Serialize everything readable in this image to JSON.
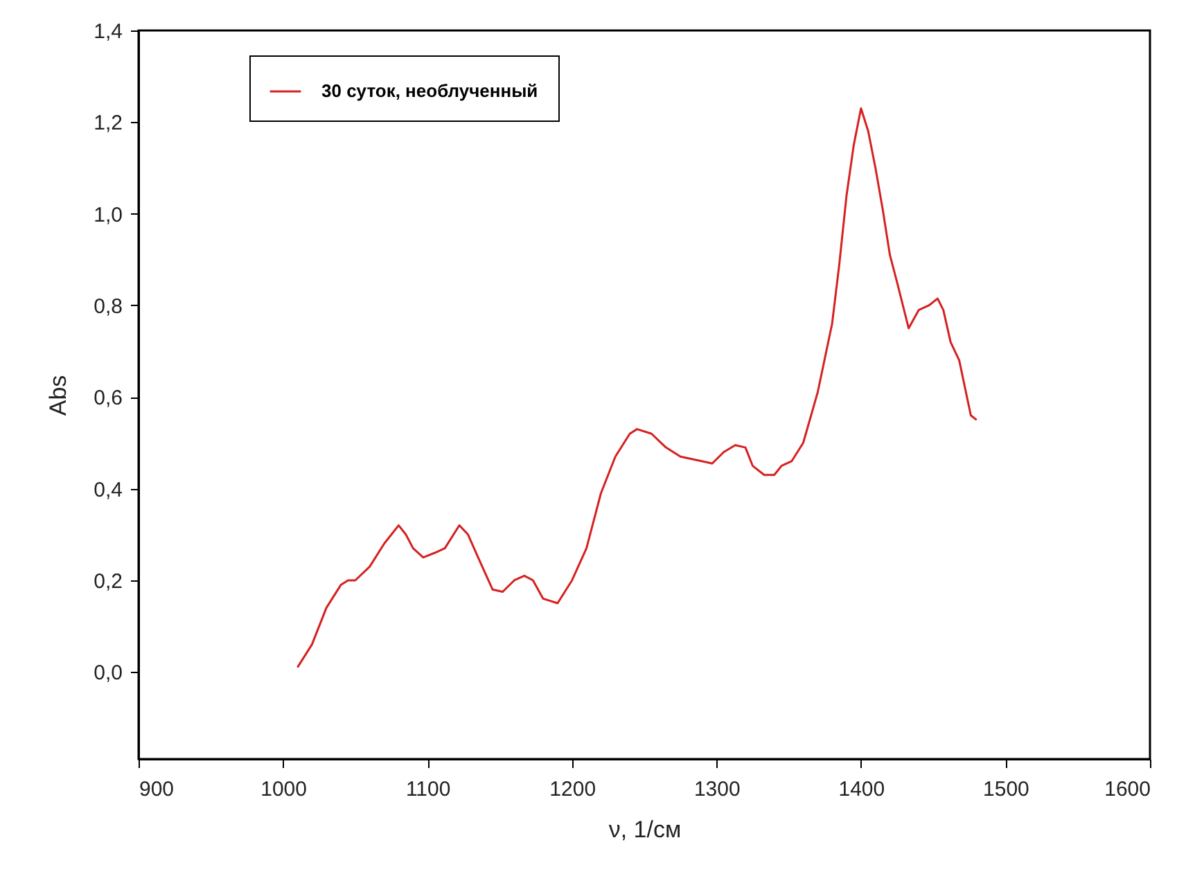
{
  "chart_data": {
    "type": "line",
    "xlabel": "ν, 1/см",
    "ylabel": "Abs",
    "legend": "top left",
    "grid": false,
    "xlim": [
      900,
      1600
    ],
    "xticks": [
      900,
      1000,
      1100,
      1200,
      1300,
      1400,
      1500,
      1600
    ],
    "ylim": [
      -0.19,
      1.4
    ],
    "yticks": [
      {
        "value": 0,
        "label": "0,0"
      },
      {
        "value": 0.2,
        "label": "0,2"
      },
      {
        "value": 0.4,
        "label": "0,4"
      },
      {
        "value": 0.6,
        "label": "0,6"
      },
      {
        "value": 0.8,
        "label": "0,8"
      },
      {
        "value": 1.0,
        "label": "1,0"
      },
      {
        "value": 1.2,
        "label": "1,2"
      },
      {
        "value": 1.4,
        "label": "1,4"
      }
    ],
    "x": [
      1010,
      1020,
      1030,
      1040,
      1045,
      1050,
      1060,
      1070,
      1080,
      1085,
      1090,
      1097,
      1105,
      1112,
      1122,
      1128,
      1135,
      1145,
      1152,
      1160,
      1167,
      1173,
      1180,
      1190,
      1200,
      1210,
      1220,
      1230,
      1240,
      1245,
      1255,
      1265,
      1275,
      1290,
      1297,
      1305,
      1313,
      1320,
      1325,
      1333,
      1340,
      1345,
      1352,
      1360,
      1370,
      1380,
      1385,
      1390,
      1395,
      1400,
      1405,
      1410,
      1415,
      1420,
      1425,
      1433,
      1440,
      1447,
      1453,
      1457,
      1462,
      1468,
      1472,
      1476,
      1480
    ],
    "series": [
      {
        "name": "30 суток, необлученный",
        "color": "#d62020",
        "values": [
          0.01,
          0.06,
          0.14,
          0.19,
          0.2,
          0.2,
          0.23,
          0.28,
          0.32,
          0.3,
          0.27,
          0.25,
          0.26,
          0.27,
          0.32,
          0.3,
          0.25,
          0.18,
          0.175,
          0.2,
          0.21,
          0.2,
          0.16,
          0.15,
          0.2,
          0.27,
          0.39,
          0.47,
          0.52,
          0.53,
          0.52,
          0.49,
          0.47,
          0.46,
          0.455,
          0.48,
          0.495,
          0.49,
          0.45,
          0.43,
          0.43,
          0.45,
          0.46,
          0.5,
          0.61,
          0.76,
          0.89,
          1.04,
          1.15,
          1.23,
          1.18,
          1.1,
          1.01,
          0.91,
          0.85,
          0.75,
          0.79,
          0.8,
          0.815,
          0.79,
          0.72,
          0.68,
          0.62,
          0.56,
          0.55
        ]
      }
    ]
  }
}
